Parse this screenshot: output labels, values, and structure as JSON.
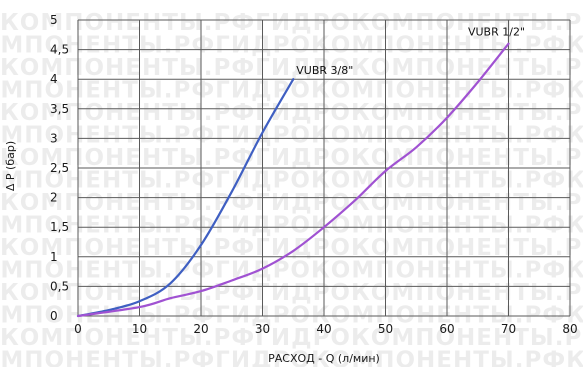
{
  "chart_data": {
    "type": "line",
    "title": "",
    "xlabel": "РАСХОД - Q (л/мин)",
    "ylabel": "Δ P (бар)",
    "xlim": [
      0,
      80
    ],
    "ylim": [
      0,
      5
    ],
    "x_ticks": [
      "0",
      "10",
      "20",
      "30",
      "40",
      "50",
      "60",
      "70",
      "80"
    ],
    "y_ticks": [
      "0",
      "0,5",
      "1",
      "1,5",
      "2",
      "2,5",
      "3",
      "3,5",
      "4",
      "4,5",
      "5"
    ],
    "grid": true,
    "watermark": "КОМПОНЕНТЫ.РФГИДРОКОМПОНЕНТЫ.РФ",
    "series": [
      {
        "name": "VUBR 3/8\"",
        "color": "#3f5fc2",
        "x": [
          0,
          5,
          10,
          15,
          20,
          25,
          30,
          35
        ],
        "y": [
          0,
          0.1,
          0.25,
          0.55,
          1.2,
          2.1,
          3.1,
          4.0
        ]
      },
      {
        "name": "VUBR 1/2\"",
        "color": "#a052d2",
        "x": [
          0,
          10,
          15,
          20,
          25,
          30,
          35,
          40,
          45,
          50,
          55,
          60,
          65,
          70
        ],
        "y": [
          0,
          0.15,
          0.3,
          0.42,
          0.6,
          0.8,
          1.1,
          1.5,
          1.95,
          2.45,
          2.85,
          3.35,
          3.95,
          4.6
        ]
      }
    ]
  }
}
